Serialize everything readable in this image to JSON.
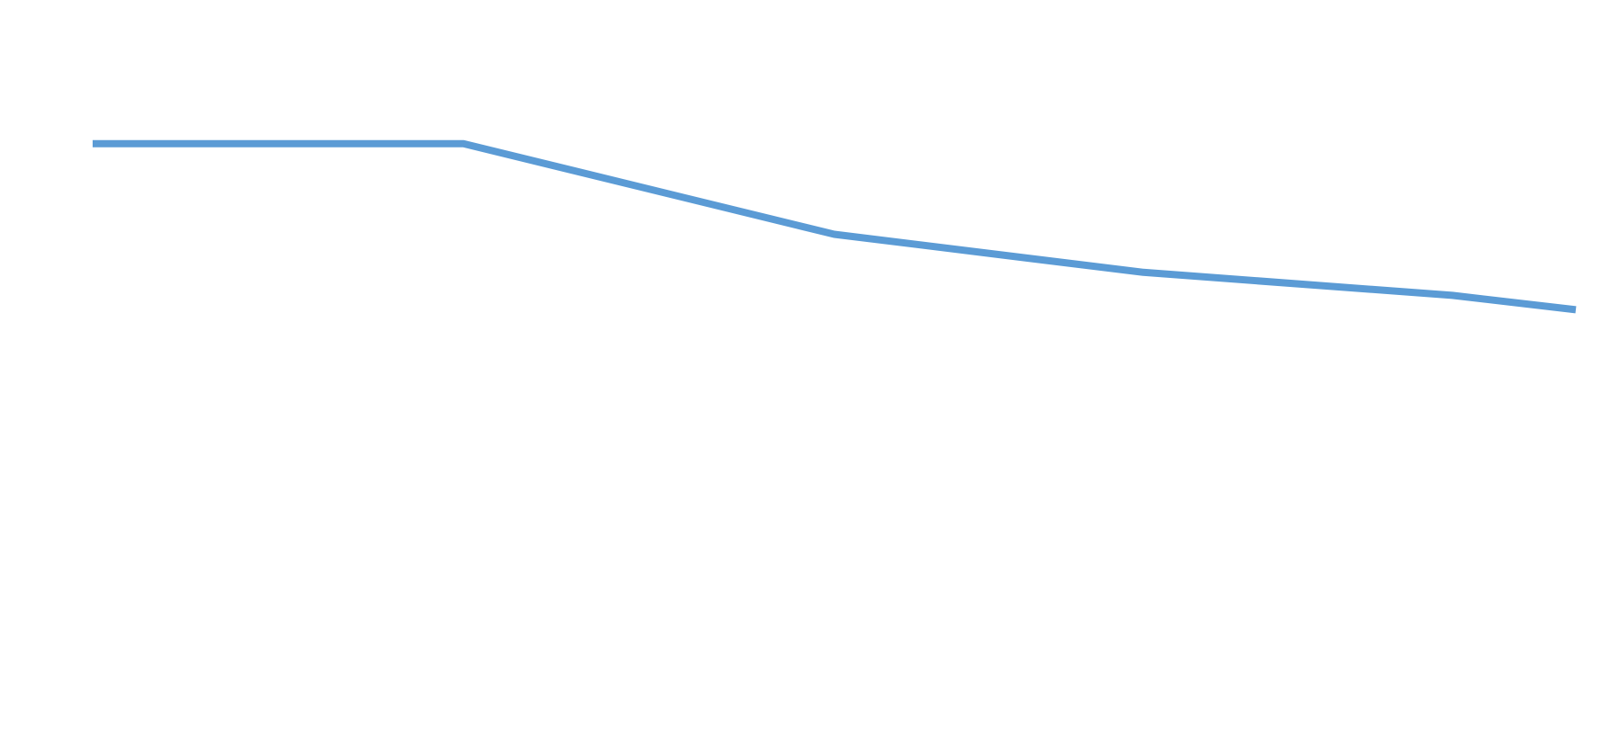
{
  "chart_data": {
    "type": "line",
    "x": [
      1,
      2,
      3,
      4,
      7,
      9.5,
      12,
      13
    ],
    "series": [
      {
        "color": "#5b9bd5",
        "values": [
          80,
          80,
          80,
          80,
          67.4,
          62.1,
          58.9,
          56.9
        ]
      }
    ],
    "xlim": [
      1,
      13
    ],
    "ylim": [
      0,
      100
    ],
    "grid": false
  }
}
